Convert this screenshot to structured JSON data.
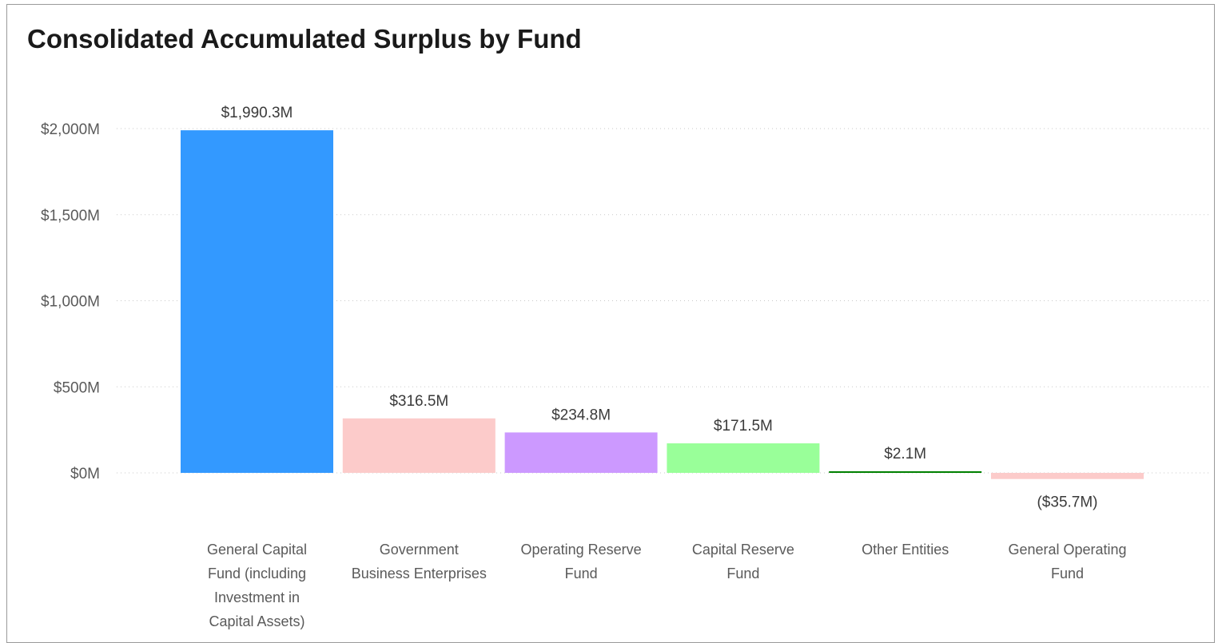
{
  "title": "Consolidated Accumulated Surplus by Fund",
  "chart_data": {
    "type": "bar",
    "title": "Consolidated Accumulated Surplus by Fund",
    "xlabel": "",
    "ylabel": "",
    "ylim": [
      0,
      2000
    ],
    "yticks": [
      0,
      500,
      1000,
      1500,
      2000
    ],
    "ytick_labels": [
      "$0M",
      "$500M",
      "$1,000M",
      "$1,500M",
      "$2,000M"
    ],
    "grid": true,
    "categories": [
      [
        "General Capital",
        "Fund (including",
        "Investment in",
        "Capital Assets)"
      ],
      [
        "Government",
        "Business Enterprises"
      ],
      [
        "Operating Reserve",
        "Fund"
      ],
      [
        "Capital Reserve",
        "Fund"
      ],
      [
        "Other Entities"
      ],
      [
        "General Operating",
        "Fund"
      ]
    ],
    "values": [
      1990.3,
      316.5,
      234.8,
      171.5,
      2.1,
      -35.7
    ],
    "data_labels": [
      "$1,990.3M",
      "$316.5M",
      "$234.8M",
      "$171.5M",
      "$2.1M",
      "($35.7M)"
    ],
    "colors": [
      "#3399FF",
      "#FCCBCA",
      "#CC99FF",
      "#99FF99",
      "#008000",
      "#FCCBCA"
    ]
  }
}
